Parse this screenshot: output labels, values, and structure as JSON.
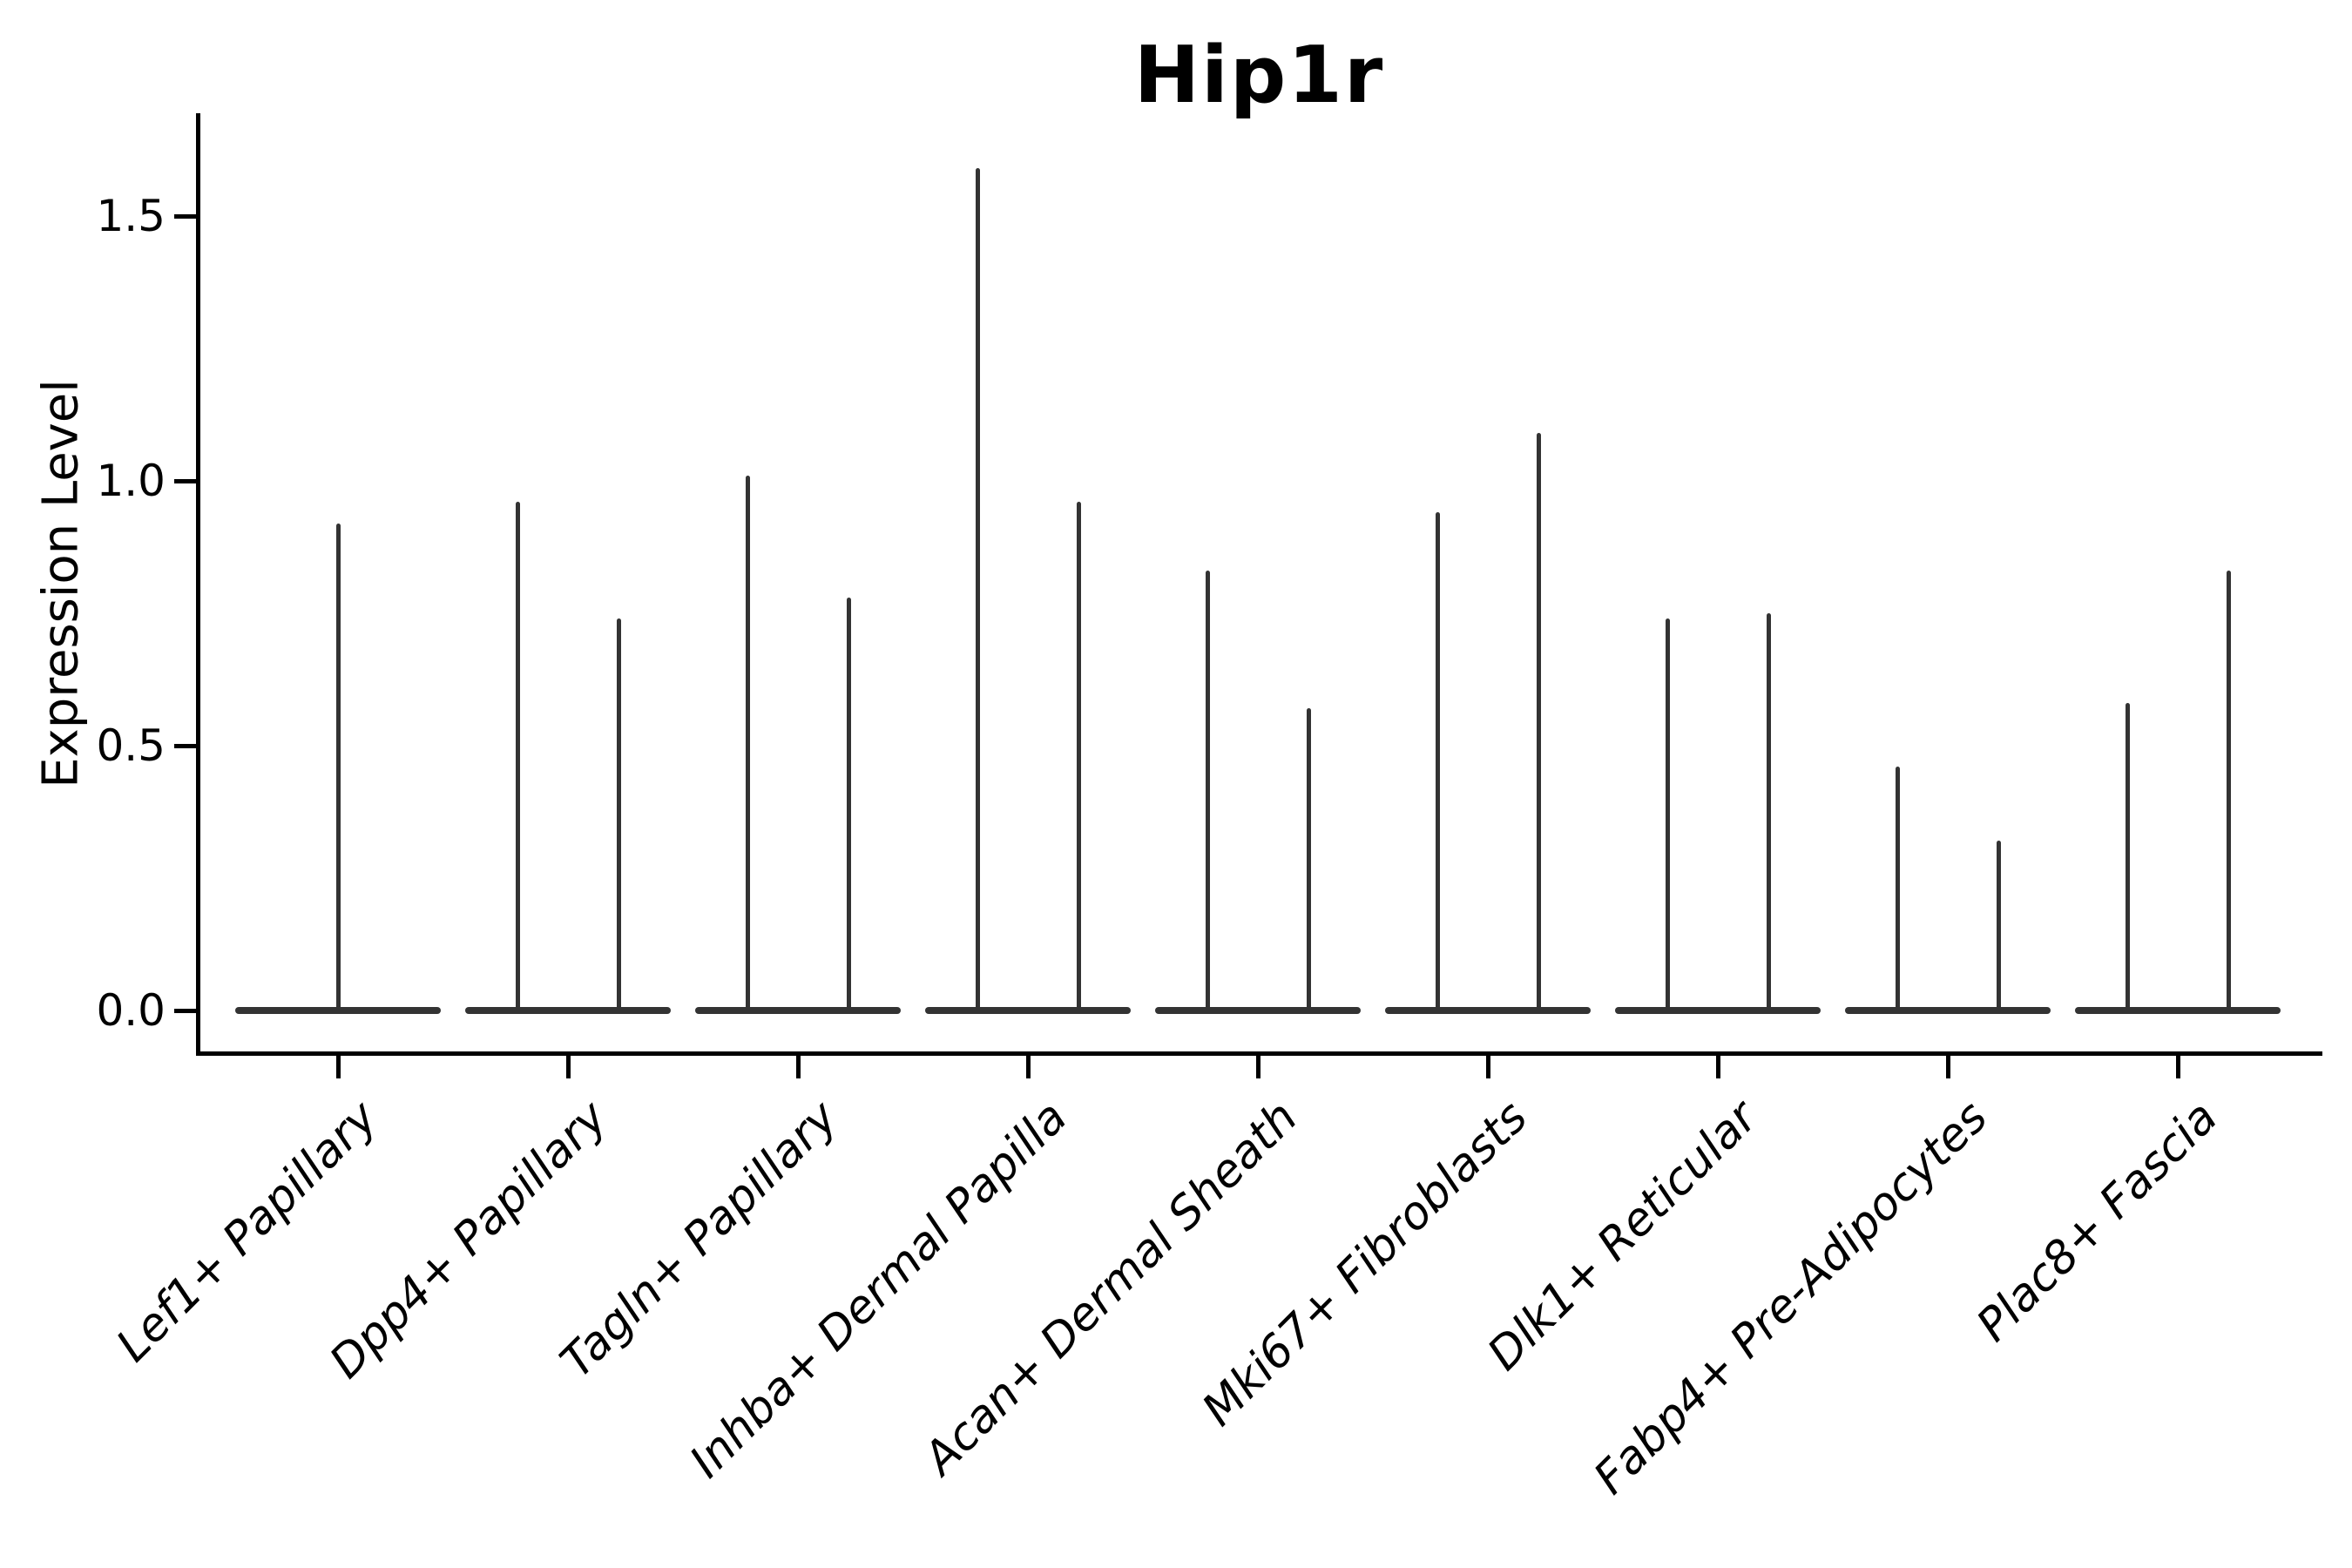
{
  "title": "Hip1r",
  "y_axis_label": "Expression Level",
  "chart_data": {
    "type": "violin",
    "title": "Hip1r",
    "xlabel": "",
    "ylabel": "Expression Level",
    "ylim": [
      -0.08,
      1.69
    ],
    "yticks": [
      0.0,
      0.5,
      1.0,
      1.5
    ],
    "ytick_labels": [
      "0.0",
      "0.5",
      "1.0",
      "1.5"
    ],
    "grid": false,
    "legend": "none",
    "categories": [
      "Lef1+ Papillary",
      "Dpp4+ Papillary",
      "Tagln+ Papillary",
      "Inhba+ Dermal Papilla",
      "Acan+ Dermal Sheath",
      "Mki67+ Fibroblasts",
      "Dlk1+ Reticular",
      "Fabp4+ Pre-Adipocytes",
      "Plac8+ Fascia"
    ],
    "violin_max_values": [
      [
        0.92
      ],
      [
        0.96,
        0.74
      ],
      [
        1.01,
        0.78
      ],
      [
        1.59,
        0.96
      ],
      [
        0.83,
        0.57
      ],
      [
        0.94,
        1.09
      ],
      [
        0.74,
        0.75
      ],
      [
        0.46,
        0.32
      ],
      [
        0.58,
        0.83
      ]
    ],
    "baseline_value": 0.0,
    "description": "Thin collapsed violins: each category has a flat base at expression 0 and one or two narrow spikes reaching the listed maximum expression values.",
    "colors": {
      "violin": "#333333",
      "axis": "#000000",
      "text": "#000000",
      "background": "#ffffff"
    }
  }
}
